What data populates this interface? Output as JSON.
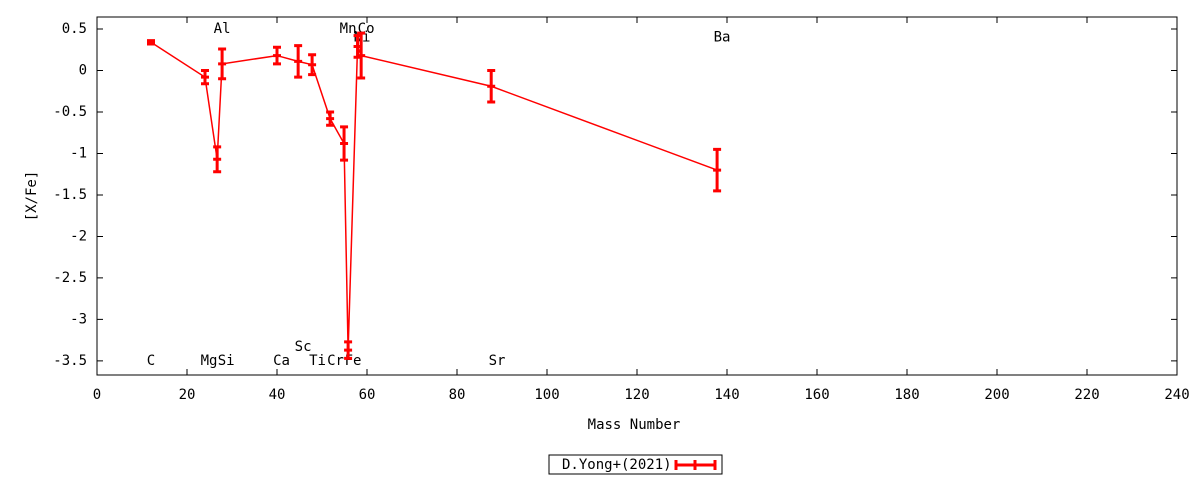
{
  "chart_data": {
    "type": "line",
    "xlabel": "Mass Number",
    "ylabel": "[X/Fe]",
    "x": [
      12,
      24,
      26.7,
      27.8,
      40,
      44.7,
      47.8,
      51.8,
      54.9,
      55.8,
      57.9,
      58.7,
      87.6,
      137.8
    ],
    "series": [
      {
        "name": "D.Yong+(2021)",
        "color": "#ff0000",
        "values": [
          0.34,
          -0.08,
          -1.07,
          0.08,
          0.18,
          0.11,
          0.07,
          -0.58,
          -0.88,
          -3.37,
          0.29,
          0.18,
          -0.19,
          -1.2
        ],
        "errors": [
          0.02,
          0.08,
          0.15,
          0.18,
          0.1,
          0.19,
          0.12,
          0.08,
          0.2,
          0.1,
          0.13,
          0.27,
          0.19,
          0.25
        ]
      }
    ],
    "annotations": [
      {
        "text": "C",
        "x": 12,
        "y": -3.5
      },
      {
        "text": "Mg",
        "x": 24.9,
        "y": -3.5
      },
      {
        "text": "Si",
        "x": 28.7,
        "y": -3.5
      },
      {
        "text": "Al",
        "x": 27.8,
        "y": 0.5
      },
      {
        "text": "Ca",
        "x": 41,
        "y": -3.5
      },
      {
        "text": "Sc",
        "x": 45.8,
        "y": -3.33
      },
      {
        "text": "Ti",
        "x": 49,
        "y": -3.5
      },
      {
        "text": "Cr",
        "x": 53,
        "y": -3.5
      },
      {
        "text": "Fe",
        "x": 56.9,
        "y": -3.5
      },
      {
        "text": "Mn",
        "x": 55.8,
        "y": 0.5
      },
      {
        "text": "Ni",
        "x": 58.9,
        "y": 0.4
      },
      {
        "text": "Co",
        "x": 59.8,
        "y": 0.5
      },
      {
        "text": "Sr",
        "x": 88.9,
        "y": -3.5
      },
      {
        "text": "Ba",
        "x": 138.9,
        "y": 0.4
      }
    ],
    "xlim": [
      0,
      240
    ],
    "xticks": [
      0,
      20,
      40,
      60,
      80,
      100,
      120,
      140,
      160,
      180,
      200,
      220,
      240
    ],
    "ylim": [
      -3.67,
      0.645
    ],
    "yticks": [
      0.5,
      0,
      -0.5,
      -1,
      -1.5,
      -2,
      -2.5,
      -3,
      -3.5
    ],
    "grid": false,
    "legend": "bottom"
  }
}
